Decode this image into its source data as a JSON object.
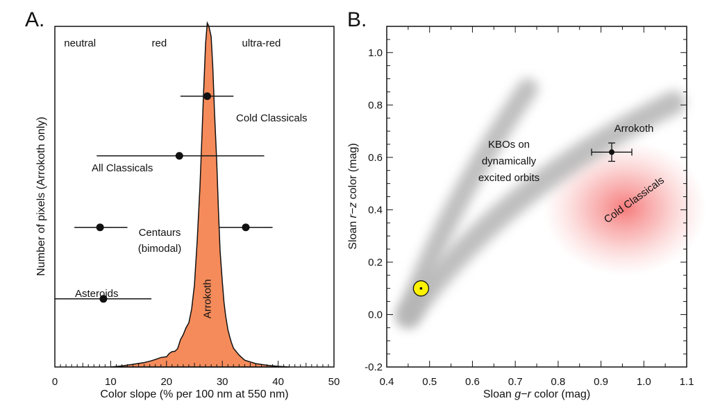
{
  "chart_data": [
    {
      "type": "area",
      "panel_label": "A.",
      "xlabel": "Color slope (% per 100 nm at 550 nm)",
      "ylabel": "Number of pixels (Arrokoth only)",
      "xlim": [
        0,
        50
      ],
      "xticks": [
        0,
        10,
        20,
        30,
        40,
        50
      ],
      "ylim": [
        0,
        100
      ],
      "grid": false,
      "region_labels": [
        {
          "text": "neutral",
          "x": 4.5
        },
        {
          "text": "red",
          "x": 18.7
        },
        {
          "text": "ultra-red",
          "x": 37
        }
      ],
      "histogram": {
        "name": "Arrokoth",
        "color": "#F58B5A",
        "x": [
          10,
          12,
          14,
          16,
          17,
          18,
          19,
          20,
          20.5,
          21,
          21.5,
          22,
          22.5,
          23,
          23.5,
          24,
          24.5,
          25,
          25.5,
          26,
          26.3,
          26.6,
          27,
          27.3,
          27.6,
          28,
          28.3,
          28.6,
          29,
          29.3,
          29.6,
          30,
          30.3,
          30.6,
          31,
          31.3,
          31.6,
          32,
          33,
          34,
          36,
          38,
          40,
          42
        ],
        "y": [
          0,
          0.3,
          0.8,
          1.3,
          1.7,
          2.2,
          2.8,
          3.0,
          4.0,
          4.5,
          4.6,
          5.4,
          8.0,
          9.5,
          11.5,
          13,
          17,
          24,
          37,
          53,
          66,
          79,
          95,
          101,
          100,
          97,
          88,
          75,
          60,
          46,
          34,
          25,
          19,
          15,
          11,
          9,
          7.3,
          5.5,
          3.5,
          2.0,
          1.0,
          0.5,
          0.2,
          0
        ]
      },
      "points": [
        {
          "label": "Cold Classicals",
          "x": 27.3,
          "xmin": 22.5,
          "xmax": 32.0,
          "y": 79.5
        },
        {
          "label": "All Classicals",
          "x": 22.3,
          "xmin": 7.5,
          "xmax": 37.5,
          "y": 62
        },
        {
          "label": "Centaurs\n(bimodal)",
          "x": 8.1,
          "xmin": 3.5,
          "xmax": 13.0,
          "y": 41
        },
        {
          "label": "",
          "x": 34.2,
          "xmin": 29.5,
          "xmax": 39.0,
          "y": 41
        },
        {
          "label": "Asteroids",
          "x": 8.7,
          "xmin": 0,
          "xmax": 17.3,
          "y": 20
        }
      ]
    },
    {
      "type": "scatter",
      "panel_label": "B.",
      "xlabel": "Sloan g−r color (mag)",
      "ylabel": "Sloan r−z color (mag)",
      "xlim": [
        0.4,
        1.1
      ],
      "xticks": [
        0.4,
        0.5,
        0.6,
        0.7,
        0.8,
        0.9,
        1.0,
        1.1
      ],
      "ylim": [
        -0.2,
        1.1
      ],
      "yticks": [
        -0.2,
        0.0,
        0.2,
        0.4,
        0.6,
        0.8,
        1.0
      ],
      "grid": false,
      "points": [
        {
          "label": "Arrokoth",
          "x": 0.925,
          "y": 0.62,
          "xerr": 0.047,
          "yerr": 0.035
        },
        {
          "label": "",
          "x": 0.48,
          "y": 0.1,
          "marker": "sun-symbol",
          "color": "#FFF200"
        }
      ],
      "regions": [
        {
          "label": "KBOs on\ndynamically\nexcited orbits",
          "color": "#B0B0B0"
        },
        {
          "label": "Cold Classicals",
          "color": "#F26A6A"
        }
      ],
      "annotations": [
        "Arrokoth",
        "KBOs on\ndynamically\nexcited orbits",
        "Cold Classicals"
      ]
    }
  ]
}
